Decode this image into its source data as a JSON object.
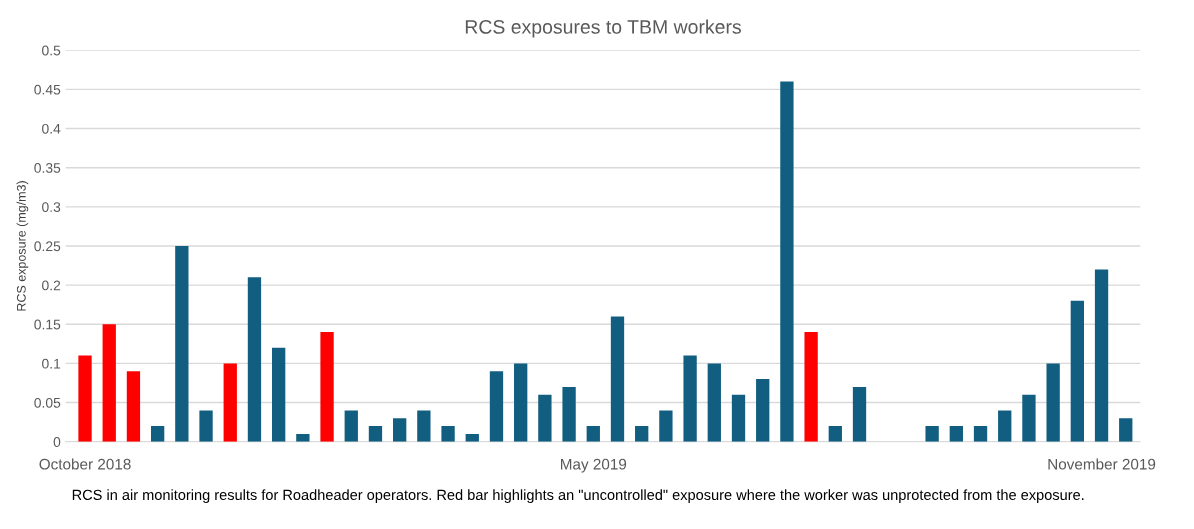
{
  "chart_data": {
    "type": "bar",
    "title": "RCS exposures to TBM workers",
    "ylabel": "RCS exposure (mg/m3)",
    "categories": [
      "October 2018",
      null,
      null,
      null,
      null,
      null,
      null,
      null,
      null,
      null,
      null,
      null,
      null,
      null,
      null,
      null,
      null,
      null,
      null,
      null,
      null,
      "May 2019",
      null,
      null,
      null,
      null,
      null,
      null,
      null,
      null,
      null,
      null,
      null,
      null,
      null,
      null,
      null,
      null,
      null,
      null,
      null,
      null,
      "November 2019",
      null
    ],
    "values": [
      0.11,
      0.15,
      0.09,
      0.02,
      0.25,
      0.04,
      0.1,
      0.21,
      0.12,
      0.01,
      0.14,
      0.04,
      0.02,
      0.03,
      0.04,
      0.02,
      0.01,
      0.09,
      0.1,
      0.06,
      0.07,
      0.02,
      0.16,
      0.02,
      0.04,
      0.11,
      0.1,
      0.06,
      0.08,
      0.46,
      0.14,
      0.02,
      0.07,
      null,
      null,
      0.02,
      0.02,
      0.02,
      0.04,
      0.06,
      0.1,
      0.18,
      0.22,
      0.03
    ],
    "colors": [
      "#ff0000",
      "#ff0000",
      "#ff0000",
      "#125e80",
      "#125e80",
      "#125e80",
      "#ff0000",
      "#125e80",
      "#125e80",
      "#125e80",
      "#ff0000",
      "#125e80",
      "#125e80",
      "#125e80",
      "#125e80",
      "#125e80",
      "#125e80",
      "#125e80",
      "#125e80",
      "#125e80",
      "#125e80",
      "#125e80",
      "#125e80",
      "#125e80",
      "#125e80",
      "#125e80",
      "#125e80",
      "#125e80",
      "#125e80",
      "#125e80",
      "#ff0000",
      "#125e80",
      "#125e80",
      "#125e80",
      "#125e80",
      "#125e80",
      "#125e80",
      "#125e80",
      "#125e80",
      "#125e80",
      "#125e80",
      "#125e80",
      "#125e80",
      "#125e80"
    ],
    "ylim": [
      0,
      0.5
    ],
    "yticks": [
      0,
      0.05,
      0.1,
      0.15,
      0.2,
      0.25,
      0.3,
      0.35,
      0.4,
      0.45,
      0.5
    ],
    "grid": "y",
    "annotations": [
      "RCS in air monitoring results for Roadheader operators. Red bar highlights an \"uncontrolled\" exposure where the worker was unprotected from the exposure."
    ]
  }
}
